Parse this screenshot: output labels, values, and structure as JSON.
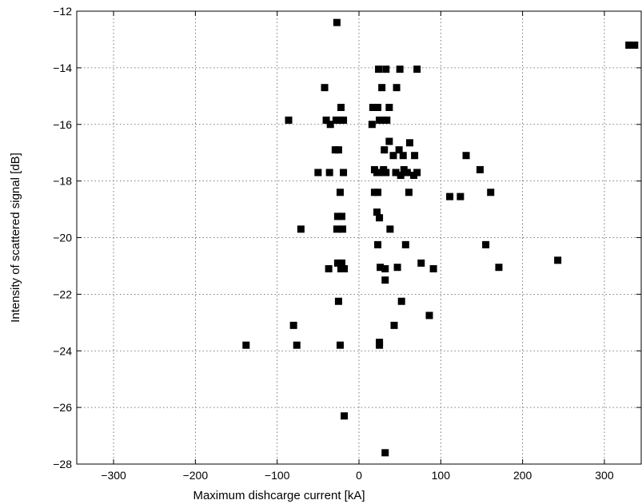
{
  "chart_data": {
    "type": "scatter",
    "title": "",
    "xlabel": "Maximum dishcarge current [kA]",
    "ylabel": "Intensity of scattered signal [dB]",
    "xlim": [
      -345,
      345
    ],
    "ylim": [
      -28,
      -12
    ],
    "xticks": [
      -300,
      -200,
      -100,
      0,
      100,
      200,
      300
    ],
    "yticks": [
      -28,
      -26,
      -24,
      -22,
      -20,
      -18,
      -16,
      -14,
      -12
    ],
    "xtick_labels": [
      "−300",
      "−200",
      "−100",
      "0",
      "100",
      "200",
      "300"
    ],
    "ytick_labels": [
      "−28",
      "−26",
      "−24",
      "−22",
      "−20",
      "−18",
      "−16",
      "−14",
      "−12"
    ],
    "grid": true,
    "marker": "square",
    "marker_color": "#000000",
    "series": [
      {
        "points": [
          [
            -27,
            -12.4
          ],
          [
            330,
            -13.2
          ],
          [
            337,
            -13.2
          ],
          [
            24,
            -14.05
          ],
          [
            33,
            -14.05
          ],
          [
            50,
            -14.05
          ],
          [
            71,
            -14.05
          ],
          [
            -42,
            -14.7
          ],
          [
            28,
            -14.7
          ],
          [
            46,
            -14.7
          ],
          [
            -22,
            -15.4
          ],
          [
            17,
            -15.4
          ],
          [
            23,
            -15.4
          ],
          [
            37,
            -15.4
          ],
          [
            -86,
            -15.85
          ],
          [
            -40,
            -15.85
          ],
          [
            -28,
            -15.85
          ],
          [
            -24,
            -15.85
          ],
          [
            -19,
            -15.85
          ],
          [
            25,
            -15.85
          ],
          [
            30,
            -15.85
          ],
          [
            34,
            -15.85
          ],
          [
            -35,
            -16.0
          ],
          [
            16,
            -16.0
          ],
          [
            37,
            -16.6
          ],
          [
            62,
            -16.65
          ],
          [
            -29,
            -16.9
          ],
          [
            -25,
            -16.9
          ],
          [
            31,
            -16.9
          ],
          [
            49,
            -16.9
          ],
          [
            42,
            -17.1
          ],
          [
            54,
            -17.1
          ],
          [
            68,
            -17.1
          ],
          [
            131,
            -17.1
          ],
          [
            -50,
            -17.7
          ],
          [
            -36,
            -17.7
          ],
          [
            -19,
            -17.7
          ],
          [
            19,
            -17.6
          ],
          [
            22,
            -17.7
          ],
          [
            27,
            -17.7
          ],
          [
            30,
            -17.6
          ],
          [
            33,
            -17.7
          ],
          [
            45,
            -17.7
          ],
          [
            51,
            -17.8
          ],
          [
            55,
            -17.6
          ],
          [
            59,
            -17.7
          ],
          [
            67,
            -17.8
          ],
          [
            71,
            -17.7
          ],
          [
            148,
            -17.6
          ],
          [
            19,
            -18.4
          ],
          [
            23,
            -18.4
          ],
          [
            -23,
            -18.4
          ],
          [
            61,
            -18.4
          ],
          [
            161,
            -18.4
          ],
          [
            111,
            -18.55
          ],
          [
            124,
            -18.55
          ],
          [
            -26,
            -19.25
          ],
          [
            -21,
            -19.25
          ],
          [
            22,
            -19.1
          ],
          [
            25,
            -19.3
          ],
          [
            -71,
            -19.7
          ],
          [
            -27,
            -19.7
          ],
          [
            -20,
            -19.7
          ],
          [
            38,
            -19.7
          ],
          [
            23,
            -20.25
          ],
          [
            57,
            -20.25
          ],
          [
            155,
            -20.25
          ],
          [
            -26,
            -20.9
          ],
          [
            -21,
            -20.9
          ],
          [
            76,
            -20.9
          ],
          [
            243,
            -20.8
          ],
          [
            -37,
            -21.1
          ],
          [
            -22,
            -21.1
          ],
          [
            -18,
            -21.1
          ],
          [
            26,
            -21.05
          ],
          [
            32,
            -21.1
          ],
          [
            47,
            -21.05
          ],
          [
            91,
            -21.1
          ],
          [
            171,
            -21.05
          ],
          [
            32,
            -21.5
          ],
          [
            -25,
            -22.25
          ],
          [
            52,
            -22.25
          ],
          [
            86,
            -22.75
          ],
          [
            -80,
            -23.1
          ],
          [
            43,
            -23.1
          ],
          [
            -138,
            -23.8
          ],
          [
            -76,
            -23.8
          ],
          [
            -23,
            -23.8
          ],
          [
            25,
            -23.7
          ],
          [
            25,
            -23.8
          ],
          [
            -18,
            -26.3
          ],
          [
            32,
            -27.6
          ]
        ]
      }
    ]
  }
}
